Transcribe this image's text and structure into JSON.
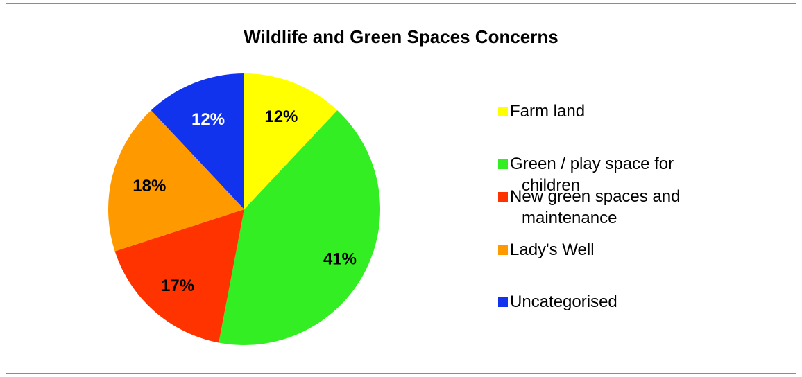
{
  "chart_data": {
    "type": "pie",
    "title": "Wildlife and Green Spaces Concerns",
    "slices": [
      {
        "label": "Farm land",
        "value": 12,
        "display": "12%",
        "color": "#ffff00",
        "label_color": "#000000"
      },
      {
        "label": "Green / play space for children",
        "value": 41,
        "display": "41%",
        "color": "#33ee22",
        "label_color": "#000000"
      },
      {
        "label": "New green spaces and maintenance",
        "value": 17,
        "display": "17%",
        "color": "#ff3300",
        "label_color": "#000000"
      },
      {
        "label": "Lady's Well",
        "value": 18,
        "display": "18%",
        "color": "#ff9900",
        "label_color": "#000000"
      },
      {
        "label": "Uncategorised",
        "value": 12,
        "display": "12%",
        "color": "#1133ee",
        "label_color": "#ffffff"
      }
    ],
    "legend_position": "right",
    "legend_lines": [
      [
        "Farm land"
      ],
      [
        "Green / play space for",
        "children"
      ],
      [
        "New green spaces and",
        "maintenance"
      ],
      [
        "Lady's Well"
      ],
      [
        "Uncategorised"
      ]
    ]
  }
}
